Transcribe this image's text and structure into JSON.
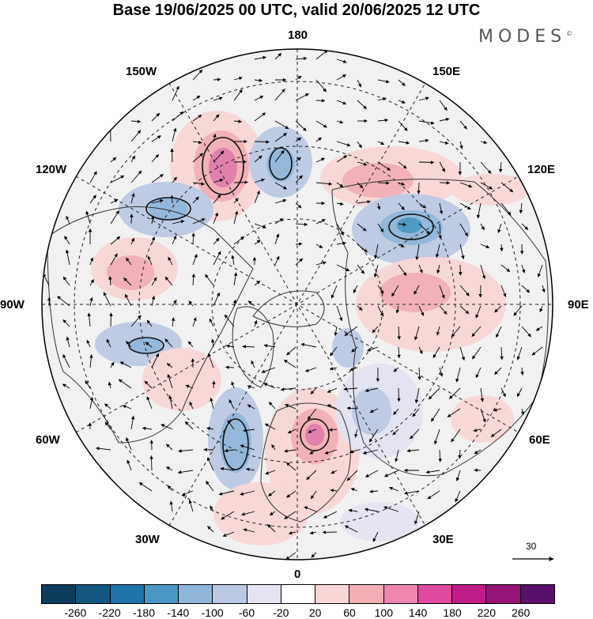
{
  "title": "Base 19/06/2025 00 UTC, valid 20/06/2025 12 UTC",
  "brand": "MODES",
  "brand_mark": "©",
  "longitude_labels": {
    "n180": "180",
    "e150": "150E",
    "e120": "120E",
    "e90": "90E",
    "e60": "60E",
    "e30": "30E",
    "zero": "0",
    "w30": "30W",
    "w60": "60W",
    "w90": "90W",
    "w120": "120W",
    "w150": "150W"
  },
  "reference_vector": {
    "value": "30"
  },
  "colorbar": {
    "colors": [
      "#0d3d5c",
      "#13567f",
      "#1f74a8",
      "#4a96c4",
      "#8fb6d8",
      "#bcc9e3",
      "#e4e3f1",
      "#ffffff",
      "#f9d6d6",
      "#f3aeb5",
      "#ee86b0",
      "#e0499e",
      "#c01c8a",
      "#941479",
      "#5a0f6b"
    ],
    "labels": [
      "-260",
      "-220",
      "-180",
      "-140",
      "-100",
      "-60",
      "-20",
      "20",
      "60",
      "100",
      "140",
      "180",
      "220",
      "260"
    ]
  }
}
